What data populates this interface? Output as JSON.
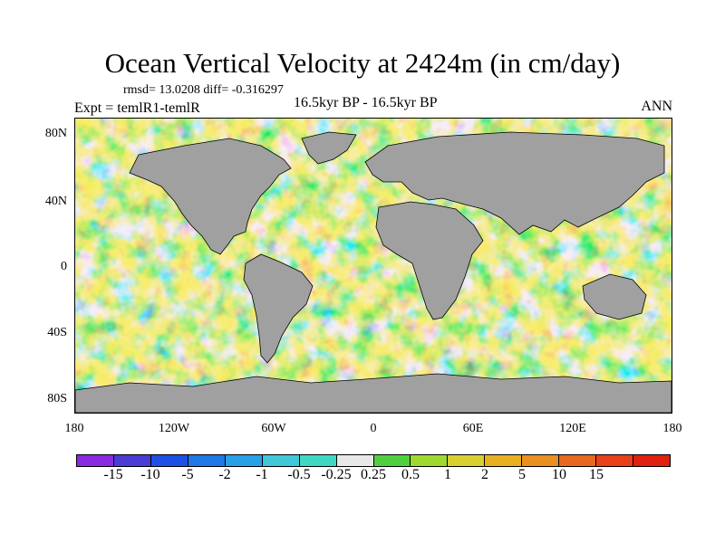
{
  "title": "Ocean Vertical Velocity at 2424m (in cm/day)",
  "stats": "rmsd= 13.0208 diff= -0.316297",
  "expt": "Expt = temlR1-temlR",
  "period": "16.5kyr BP - 16.5kyr BP",
  "season": "ANN",
  "map": {
    "land_color": "#a0a0a0",
    "lat_ticks": [
      "80N",
      "40N",
      "0",
      "40S",
      "80S"
    ],
    "lat_values": [
      80,
      40,
      0,
      -40,
      -80
    ],
    "lon_ticks": [
      "180",
      "120W",
      "60W",
      "0",
      "60E",
      "120E",
      "180"
    ],
    "lon_values": [
      -180,
      -120,
      -60,
      0,
      60,
      120,
      180
    ]
  },
  "colorbar": {
    "colors": [
      "#8a2be2",
      "#4b3cd6",
      "#1e50e6",
      "#1e78e6",
      "#2aa0e6",
      "#40c8d8",
      "#40d8c0",
      "#e8e8e8",
      "#50d040",
      "#a0d830",
      "#d8d030",
      "#e8b020",
      "#e89020",
      "#e86820",
      "#e84018",
      "#e02010"
    ],
    "labels": [
      "-15",
      "-10",
      "-5",
      "-2",
      "-1",
      "-0.5",
      "-0.25",
      "0.25",
      "0.5",
      "1",
      "2",
      "5",
      "10",
      "15"
    ]
  }
}
